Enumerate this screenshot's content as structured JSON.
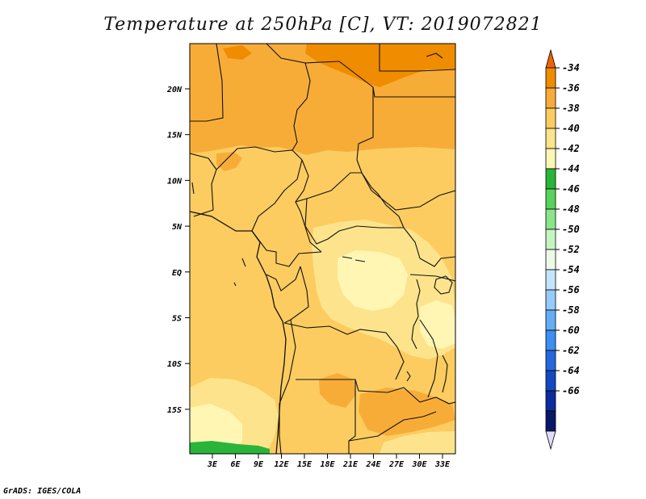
{
  "title": "Temperature at 250hPa [C], VT: 2019072821",
  "credit": "GrADS: IGES/COLA",
  "map": {
    "lat_labels": [
      "20N",
      "15N",
      "10N",
      "5N",
      "EQ",
      "5S",
      "10S",
      "15S"
    ],
    "lon_labels": [
      "3E",
      "6E",
      "9E",
      "12E",
      "15E",
      "18E",
      "21E",
      "24E",
      "27E",
      "30E",
      "33E"
    ]
  },
  "colorbar": {
    "labels": [
      "-34",
      "-36",
      "-38",
      "-40",
      "-42",
      "-44",
      "-46",
      "-48",
      "-50",
      "-52",
      "-54",
      "-56",
      "-58",
      "-60",
      "-62",
      "-64",
      "-66"
    ],
    "colors": [
      "#f06400",
      "#f08c00",
      "#f8ac38",
      "#fccc60",
      "#fde48c",
      "#fff6b4",
      "#2ab43a",
      "#58d25c",
      "#8ae58a",
      "#c4f5c0",
      "#eefae8",
      "#c4e4fc",
      "#96cafa",
      "#64aef6",
      "#3c8ef0",
      "#2468dc",
      "#1448c0",
      "#0c2ca0",
      "#081868",
      "#e0dcf8"
    ]
  }
}
